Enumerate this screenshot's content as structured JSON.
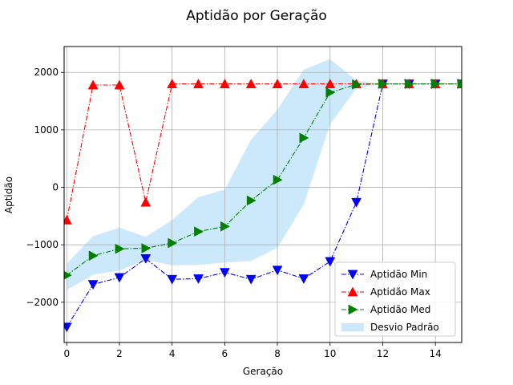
{
  "chart_data": {
    "type": "line",
    "title": "Aptidão por Geração",
    "xlabel": "Geração",
    "ylabel": "Aptidão",
    "xlim": [
      -0.1,
      15
    ],
    "ylim": [
      -2700,
      2450
    ],
    "xticks": [
      0,
      2,
      4,
      6,
      8,
      10,
      12,
      14
    ],
    "yticks": [
      -2000,
      -1000,
      0,
      1000,
      2000
    ],
    "ytick_labels": [
      "−2000",
      "−1000",
      "0",
      "1000",
      "2000"
    ],
    "grid": true,
    "legend_position": "lower-right",
    "x": [
      0,
      1,
      2,
      3,
      4,
      5,
      6,
      7,
      8,
      9,
      10,
      11,
      12,
      13,
      14,
      15
    ],
    "series": [
      {
        "name": "Aptidão Min",
        "color": "#0000ff",
        "marker": "triangle-down",
        "linestyle": "dashdot",
        "values": [
          -2430,
          -1690,
          -1570,
          -1240,
          -1600,
          -1590,
          -1480,
          -1600,
          -1440,
          -1590,
          -1290,
          -260,
          1800,
          1800,
          1800,
          1800
        ]
      },
      {
        "name": "Aptidão Max",
        "color": "#ff0000",
        "marker": "triangle-up",
        "linestyle": "dashdot",
        "values": [
          -570,
          1780,
          1780,
          -260,
          1800,
          1800,
          1800,
          1800,
          1800,
          1800,
          1800,
          1800,
          1800,
          1800,
          1800,
          1800
        ]
      },
      {
        "name": "Aptidão Med",
        "color": "#008000",
        "marker": "triangle-right",
        "linestyle": "dashdot",
        "values": [
          -1530,
          -1190,
          -1070,
          -1060,
          -970,
          -770,
          -680,
          -230,
          130,
          860,
          1650,
          1790,
          1800,
          1800,
          1800,
          1800
        ]
      }
    ],
    "std_band": {
      "name": "Desvio Padrão",
      "color": "#cce9fb",
      "upper": [
        -1330,
        -850,
        -700,
        -860,
        -570,
        -170,
        -40,
        830,
        1350,
        2050,
        2230,
        1860,
        1800,
        1800,
        1800,
        1800
      ],
      "lower": [
        -1790,
        -1520,
        -1450,
        -1260,
        -1360,
        -1350,
        -1310,
        -1280,
        -1050,
        -300,
        1100,
        1720,
        1800,
        1800,
        1800,
        1800
      ]
    }
  }
}
